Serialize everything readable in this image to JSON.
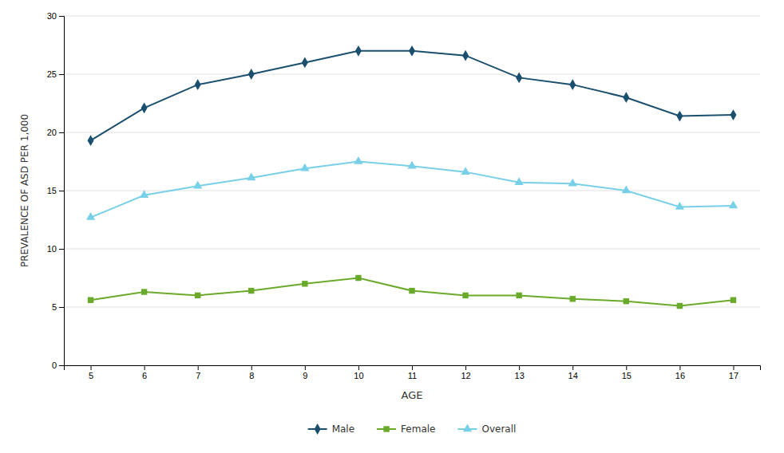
{
  "chart_data": {
    "type": "line",
    "xlabel": "AGE",
    "ylabel": "PREVALENCE OF ASD PER 1,000",
    "x": [
      5,
      6,
      7,
      8,
      9,
      10,
      11,
      12,
      13,
      14,
      15,
      16,
      17
    ],
    "series": [
      {
        "name": "Male",
        "color": "#1a4f6e",
        "marker": "diamond",
        "values": [
          19.3,
          22.1,
          24.1,
          25.0,
          26.0,
          27.0,
          27.0,
          26.6,
          24.7,
          24.1,
          23.0,
          21.4,
          21.5
        ]
      },
      {
        "name": "Female",
        "color": "#6aaa2a",
        "marker": "square",
        "values": [
          5.6,
          6.3,
          6.0,
          6.4,
          7.0,
          7.5,
          6.4,
          6.0,
          6.0,
          5.7,
          5.5,
          5.1,
          5.6
        ]
      },
      {
        "name": "Overall",
        "color": "#78d0e8",
        "marker": "triangle",
        "values": [
          12.7,
          14.6,
          15.4,
          16.1,
          16.9,
          17.5,
          17.1,
          16.6,
          15.7,
          15.6,
          15.0,
          13.6,
          13.7
        ]
      }
    ],
    "xlim": [
      4.5,
      17.5
    ],
    "xticks": [
      5,
      6,
      7,
      8,
      9,
      10,
      11,
      12,
      13,
      14,
      15,
      16,
      17
    ],
    "ylim": [
      0,
      30
    ],
    "yticks": [
      0,
      5,
      10,
      15,
      20,
      25,
      30
    ],
    "grid": true,
    "legend": "bottom"
  }
}
